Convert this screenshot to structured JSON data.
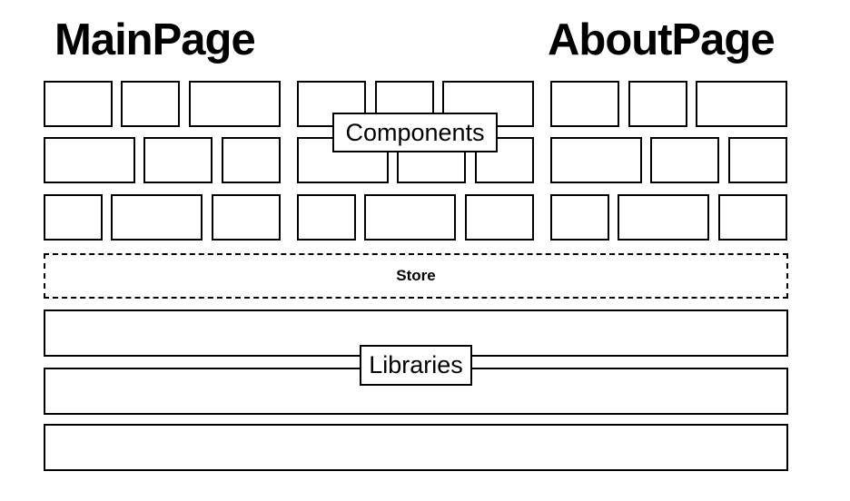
{
  "headings": {
    "main_page": "MainPage",
    "about_page": "AboutPage"
  },
  "labels": {
    "components": "Components",
    "store": "Store",
    "libraries": "Libraries"
  }
}
